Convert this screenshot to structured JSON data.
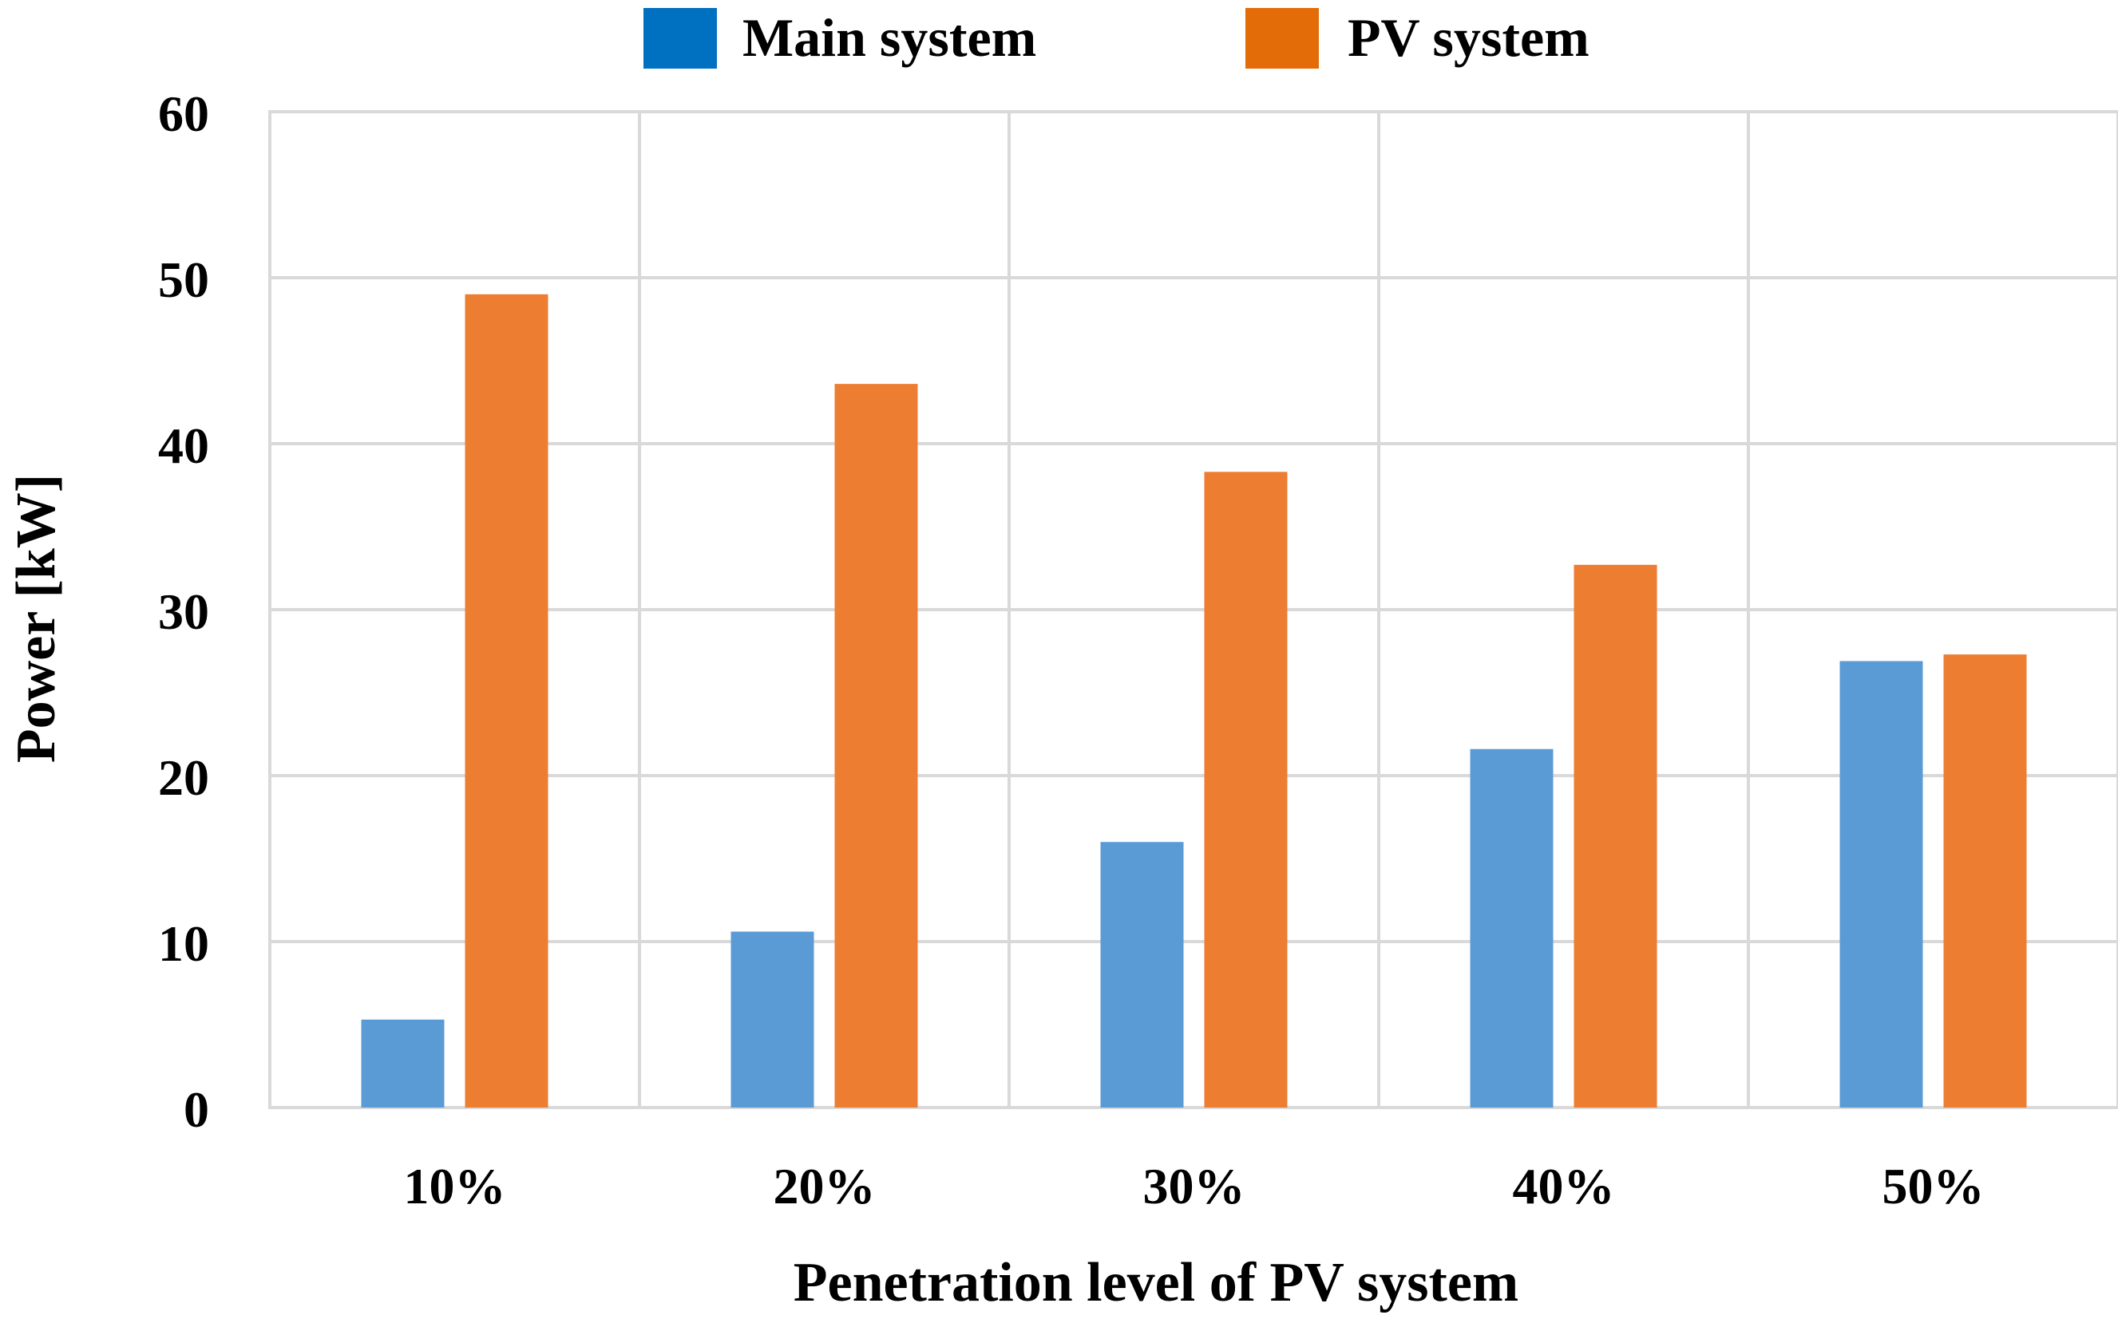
{
  "chart_data": {
    "type": "bar",
    "title": "",
    "categories": [
      "10%",
      "20%",
      "30%",
      "40%",
      "50%"
    ],
    "series": [
      {
        "name": "Main system",
        "color": "#5b9bd5",
        "legend_color": "#0070c0",
        "values": [
          5.3,
          10.6,
          16.0,
          21.6,
          26.9
        ]
      },
      {
        "name": "PV system",
        "color": "#ed7d31",
        "legend_color": "#e36c09",
        "values": [
          49.0,
          43.6,
          38.3,
          32.7,
          27.3
        ]
      }
    ],
    "xlabel": "Penetration level of PV system",
    "ylabel": "Power [kW]",
    "ylim": [
      0,
      60
    ],
    "yticks": [
      0,
      10,
      20,
      30,
      40,
      50,
      60
    ],
    "grid": true,
    "legend_position": "top-center"
  }
}
